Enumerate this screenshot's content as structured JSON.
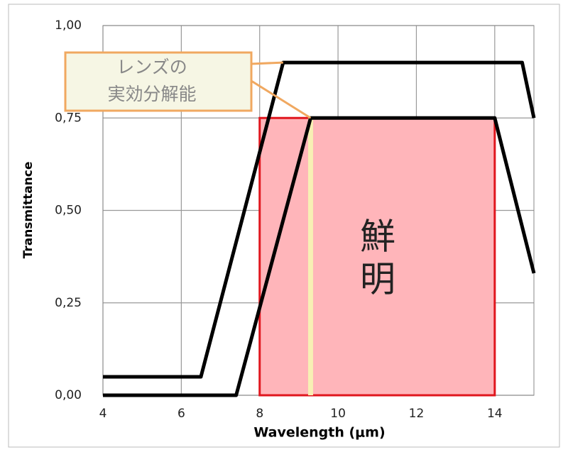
{
  "chart_data": {
    "type": "line",
    "x_label": "Wavelength (μm)",
    "y_label": "Transmittance",
    "xlim": [
      4,
      15
    ],
    "ylim": [
      0,
      1
    ],
    "xticks": [
      4,
      6,
      8,
      10,
      12,
      14
    ],
    "yticks": [
      {
        "value": 0,
        "label": "0,00"
      },
      {
        "value": 0.25,
        "label": "0,25"
      },
      {
        "value": 0.5,
        "label": "0,50"
      },
      {
        "value": 0.75,
        "label": "0,75"
      },
      {
        "value": 1,
        "label": "1,00"
      }
    ],
    "grid": true,
    "series": [
      {
        "color": "#000000",
        "x": [
          4,
          6.5,
          8.6,
          14.7,
          15
        ],
        "values": [
          0.05,
          0.05,
          0.9,
          0.9,
          0.75
        ]
      },
      {
        "color": "#000000",
        "x": [
          4,
          7.4,
          9.3,
          14,
          15
        ],
        "values": [
          0,
          0,
          0.75,
          0.75,
          0.33
        ]
      }
    ],
    "highlight": {
      "x": [
        8,
        14
      ],
      "y": [
        0,
        0.75
      ],
      "color": "#ffb5ba",
      "edge_color": "#e0161e",
      "label": [
        "鮮",
        "明"
      ]
    },
    "marker_x": 9.3,
    "marker_color": "#f7f0b4",
    "callout": {
      "lines": [
        "レンズの",
        "実効分解能"
      ],
      "color": "#f0a860"
    }
  }
}
